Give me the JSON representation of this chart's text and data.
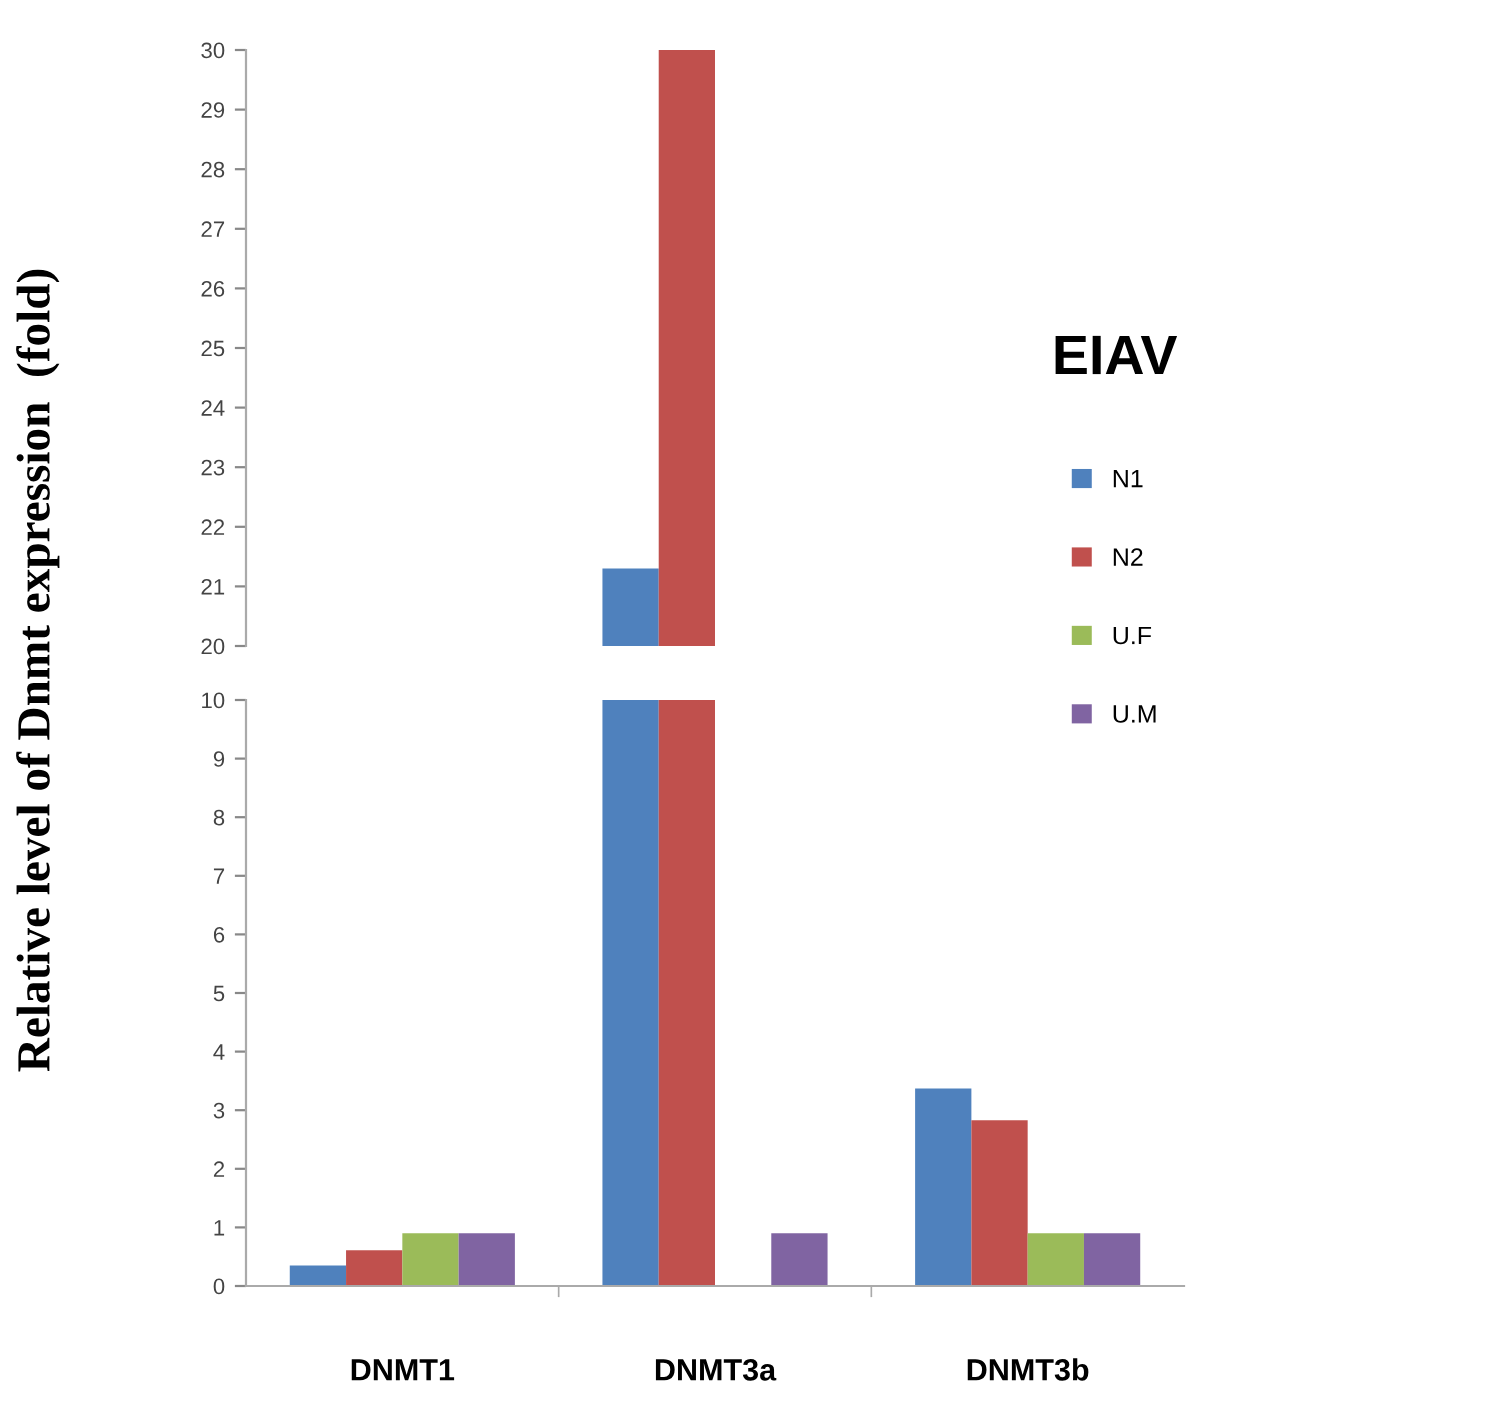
{
  "chart_data": [
    {
      "type": "bar",
      "ylabel": "Relative level of Dnmt expression  (fold)",
      "ylim": [
        20,
        30
      ],
      "yticks": [
        20,
        21,
        22,
        23,
        24,
        25,
        26,
        27,
        28,
        29,
        30
      ],
      "tick_labels": "y",
      "series": [
        {
          "color": "#4f81bd",
          "values": [
            null,
            21.3,
            null
          ]
        },
        {
          "color": "#c0504d",
          "values": [
            null,
            30,
            null
          ]
        }
      ]
    },
    {
      "type": "bar",
      "categories": [
        "DNMT1",
        "DNMT3a",
        "DNMT3b"
      ],
      "ylim": [
        0,
        10
      ],
      "yticks": [
        0,
        1,
        2,
        3,
        4,
        5,
        6,
        7,
        8,
        9,
        10
      ],
      "legend": "right",
      "legend_title": "EIAV",
      "series": [
        {
          "name": "N1",
          "color": "#4f81bd",
          "values": [
            0.35,
            10,
            3.37
          ]
        },
        {
          "name": "N2",
          "color": "#c0504d",
          "values": [
            0.61,
            10,
            2.83
          ]
        },
        {
          "name": "U.F",
          "color": "#9bbb59",
          "values": [
            0.9,
            null,
            0.9
          ]
        },
        {
          "name": "U.M",
          "color": "#8064a2",
          "values": [
            0.9,
            0.9,
            0.9
          ]
        }
      ]
    }
  ]
}
